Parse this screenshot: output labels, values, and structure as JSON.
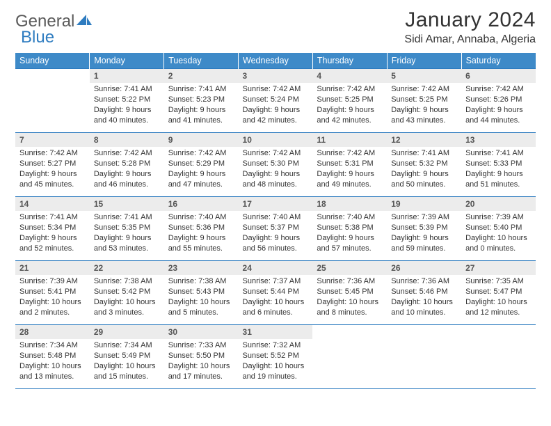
{
  "logo": {
    "text1": "General",
    "text2": "Blue"
  },
  "title": "January 2024",
  "location": "Sidi Amar, Annaba, Algeria",
  "columns": [
    "Sunday",
    "Monday",
    "Tuesday",
    "Wednesday",
    "Thursday",
    "Friday",
    "Saturday"
  ],
  "colors": {
    "header_bg": "#3e8ac8",
    "header_text": "#ffffff",
    "rule": "#2e7cc0",
    "daynum_bg": "#ececec",
    "text": "#333333"
  },
  "weeks": [
    [
      {
        "n": "",
        "sr": "",
        "ss": "",
        "dl": "",
        "empty": true
      },
      {
        "n": "1",
        "sr": "Sunrise: 7:41 AM",
        "ss": "Sunset: 5:22 PM",
        "dl": "Daylight: 9 hours and 40 minutes."
      },
      {
        "n": "2",
        "sr": "Sunrise: 7:41 AM",
        "ss": "Sunset: 5:23 PM",
        "dl": "Daylight: 9 hours and 41 minutes."
      },
      {
        "n": "3",
        "sr": "Sunrise: 7:42 AM",
        "ss": "Sunset: 5:24 PM",
        "dl": "Daylight: 9 hours and 42 minutes."
      },
      {
        "n": "4",
        "sr": "Sunrise: 7:42 AM",
        "ss": "Sunset: 5:25 PM",
        "dl": "Daylight: 9 hours and 42 minutes."
      },
      {
        "n": "5",
        "sr": "Sunrise: 7:42 AM",
        "ss": "Sunset: 5:25 PM",
        "dl": "Daylight: 9 hours and 43 minutes."
      },
      {
        "n": "6",
        "sr": "Sunrise: 7:42 AM",
        "ss": "Sunset: 5:26 PM",
        "dl": "Daylight: 9 hours and 44 minutes."
      }
    ],
    [
      {
        "n": "7",
        "sr": "Sunrise: 7:42 AM",
        "ss": "Sunset: 5:27 PM",
        "dl": "Daylight: 9 hours and 45 minutes."
      },
      {
        "n": "8",
        "sr": "Sunrise: 7:42 AM",
        "ss": "Sunset: 5:28 PM",
        "dl": "Daylight: 9 hours and 46 minutes."
      },
      {
        "n": "9",
        "sr": "Sunrise: 7:42 AM",
        "ss": "Sunset: 5:29 PM",
        "dl": "Daylight: 9 hours and 47 minutes."
      },
      {
        "n": "10",
        "sr": "Sunrise: 7:42 AM",
        "ss": "Sunset: 5:30 PM",
        "dl": "Daylight: 9 hours and 48 minutes."
      },
      {
        "n": "11",
        "sr": "Sunrise: 7:42 AM",
        "ss": "Sunset: 5:31 PM",
        "dl": "Daylight: 9 hours and 49 minutes."
      },
      {
        "n": "12",
        "sr": "Sunrise: 7:41 AM",
        "ss": "Sunset: 5:32 PM",
        "dl": "Daylight: 9 hours and 50 minutes."
      },
      {
        "n": "13",
        "sr": "Sunrise: 7:41 AM",
        "ss": "Sunset: 5:33 PM",
        "dl": "Daylight: 9 hours and 51 minutes."
      }
    ],
    [
      {
        "n": "14",
        "sr": "Sunrise: 7:41 AM",
        "ss": "Sunset: 5:34 PM",
        "dl": "Daylight: 9 hours and 52 minutes."
      },
      {
        "n": "15",
        "sr": "Sunrise: 7:41 AM",
        "ss": "Sunset: 5:35 PM",
        "dl": "Daylight: 9 hours and 53 minutes."
      },
      {
        "n": "16",
        "sr": "Sunrise: 7:40 AM",
        "ss": "Sunset: 5:36 PM",
        "dl": "Daylight: 9 hours and 55 minutes."
      },
      {
        "n": "17",
        "sr": "Sunrise: 7:40 AM",
        "ss": "Sunset: 5:37 PM",
        "dl": "Daylight: 9 hours and 56 minutes."
      },
      {
        "n": "18",
        "sr": "Sunrise: 7:40 AM",
        "ss": "Sunset: 5:38 PM",
        "dl": "Daylight: 9 hours and 57 minutes."
      },
      {
        "n": "19",
        "sr": "Sunrise: 7:39 AM",
        "ss": "Sunset: 5:39 PM",
        "dl": "Daylight: 9 hours and 59 minutes."
      },
      {
        "n": "20",
        "sr": "Sunrise: 7:39 AM",
        "ss": "Sunset: 5:40 PM",
        "dl": "Daylight: 10 hours and 0 minutes."
      }
    ],
    [
      {
        "n": "21",
        "sr": "Sunrise: 7:39 AM",
        "ss": "Sunset: 5:41 PM",
        "dl": "Daylight: 10 hours and 2 minutes."
      },
      {
        "n": "22",
        "sr": "Sunrise: 7:38 AM",
        "ss": "Sunset: 5:42 PM",
        "dl": "Daylight: 10 hours and 3 minutes."
      },
      {
        "n": "23",
        "sr": "Sunrise: 7:38 AM",
        "ss": "Sunset: 5:43 PM",
        "dl": "Daylight: 10 hours and 5 minutes."
      },
      {
        "n": "24",
        "sr": "Sunrise: 7:37 AM",
        "ss": "Sunset: 5:44 PM",
        "dl": "Daylight: 10 hours and 6 minutes."
      },
      {
        "n": "25",
        "sr": "Sunrise: 7:36 AM",
        "ss": "Sunset: 5:45 PM",
        "dl": "Daylight: 10 hours and 8 minutes."
      },
      {
        "n": "26",
        "sr": "Sunrise: 7:36 AM",
        "ss": "Sunset: 5:46 PM",
        "dl": "Daylight: 10 hours and 10 minutes."
      },
      {
        "n": "27",
        "sr": "Sunrise: 7:35 AM",
        "ss": "Sunset: 5:47 PM",
        "dl": "Daylight: 10 hours and 12 minutes."
      }
    ],
    [
      {
        "n": "28",
        "sr": "Sunrise: 7:34 AM",
        "ss": "Sunset: 5:48 PM",
        "dl": "Daylight: 10 hours and 13 minutes."
      },
      {
        "n": "29",
        "sr": "Sunrise: 7:34 AM",
        "ss": "Sunset: 5:49 PM",
        "dl": "Daylight: 10 hours and 15 minutes."
      },
      {
        "n": "30",
        "sr": "Sunrise: 7:33 AM",
        "ss": "Sunset: 5:50 PM",
        "dl": "Daylight: 10 hours and 17 minutes."
      },
      {
        "n": "31",
        "sr": "Sunrise: 7:32 AM",
        "ss": "Sunset: 5:52 PM",
        "dl": "Daylight: 10 hours and 19 minutes."
      },
      {
        "n": "",
        "sr": "",
        "ss": "",
        "dl": "",
        "empty": true
      },
      {
        "n": "",
        "sr": "",
        "ss": "",
        "dl": "",
        "empty": true
      },
      {
        "n": "",
        "sr": "",
        "ss": "",
        "dl": "",
        "empty": true
      }
    ]
  ]
}
